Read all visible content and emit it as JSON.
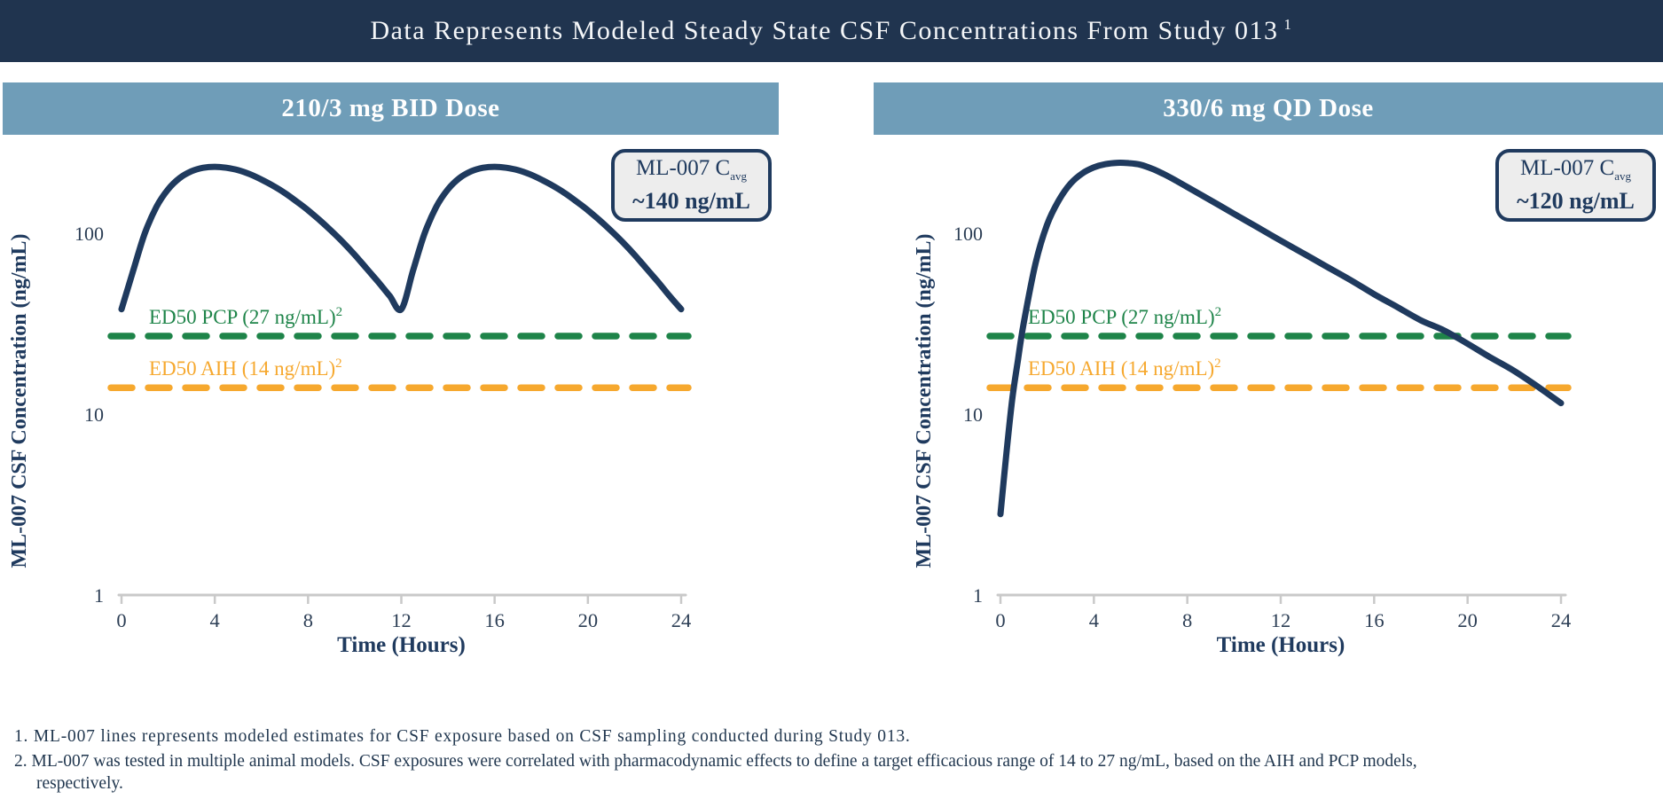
{
  "banner": {
    "title": "Data Represents Modeled Steady State CSF Concentrations From Study 013",
    "superscript": "1"
  },
  "colors": {
    "banner_navy": "#20344f",
    "panel_header_blue": "#6f9db8",
    "curve_navy": "#1f3a5e",
    "green": "#1e8449",
    "orange": "#f6a82e",
    "axis_gray": "#c9c9c9",
    "tick_text": "#2c3e55",
    "legend_bg": "#ededed"
  },
  "footnotes": [
    "1. ML-007 lines represents modeled estimates for CSF exposure based on CSF sampling conducted during Study 013.",
    "2. ML-007 was tested in multiple animal models. CSF exposures were correlated with pharmacodynamic effects to define a target efficacious range of 14 to 27 ng/mL, based on the AIH and PCP models, respectively."
  ],
  "chart_data": [
    {
      "type": "line",
      "panel_title": "210/3 mg BID Dose",
      "xlabel": "Time (Hours)",
      "ylabel": "ML-007 CSF Concentration (ng/mL)",
      "x_ticks": [
        0,
        4,
        8,
        12,
        16,
        20,
        24
      ],
      "y_ticks": [
        1,
        10,
        100
      ],
      "xlim": [
        0,
        24
      ],
      "ylim": [
        1,
        350
      ],
      "y_scale": "log",
      "grid": false,
      "annotation_box": {
        "label": "ML-007 C",
        "sub": "avg",
        "value": "~140 ng/mL"
      },
      "reference_lines": [
        {
          "label": "ED50 PCP (27 ng/mL)",
          "label_sup": "2",
          "value": 27,
          "color_key": "green"
        },
        {
          "label": "ED50 AIH (14 ng/mL)",
          "label_sup": "2",
          "value": 14,
          "color_key": "orange"
        }
      ],
      "series": [
        {
          "name": "ML-007 modeled CSF concentration (210/3 mg BID)",
          "points": [
            [
              0,
              38
            ],
            [
              0.5,
              62
            ],
            [
              1,
              100
            ],
            [
              1.5,
              140
            ],
            [
              2,
              175
            ],
            [
              2.5,
              202
            ],
            [
              3,
              220
            ],
            [
              3.5,
              230
            ],
            [
              4,
              233
            ],
            [
              4.5,
              230
            ],
            [
              5,
              223
            ],
            [
              5.5,
              212
            ],
            [
              6,
              198
            ],
            [
              6.5,
              183
            ],
            [
              7,
              167
            ],
            [
              7.5,
              150
            ],
            [
              8,
              134
            ],
            [
              8.5,
              118
            ],
            [
              9,
              103
            ],
            [
              9.5,
              89
            ],
            [
              10,
              76
            ],
            [
              10.5,
              64
            ],
            [
              11,
              54
            ],
            [
              11.5,
              45
            ],
            [
              12,
              38
            ],
            [
              12.5,
              62
            ],
            [
              13,
              100
            ],
            [
              13.5,
              140
            ],
            [
              14,
              175
            ],
            [
              14.5,
              202
            ],
            [
              15,
              220
            ],
            [
              15.5,
              230
            ],
            [
              16,
              233
            ],
            [
              16.5,
              230
            ],
            [
              17,
              223
            ],
            [
              17.5,
              212
            ],
            [
              18,
              198
            ],
            [
              18.5,
              183
            ],
            [
              19,
              167
            ],
            [
              19.5,
              150
            ],
            [
              20,
              134
            ],
            [
              20.5,
              118
            ],
            [
              21,
              103
            ],
            [
              21.5,
              89
            ],
            [
              22,
              76
            ],
            [
              22.5,
              64
            ],
            [
              23,
              54
            ],
            [
              23.5,
              45
            ],
            [
              24,
              38
            ]
          ]
        }
      ]
    },
    {
      "type": "line",
      "panel_title": "330/6 mg QD Dose",
      "xlabel": "Time (Hours)",
      "ylabel": "ML-007 CSF Concentration (ng/mL)",
      "x_ticks": [
        0,
        4,
        8,
        12,
        16,
        20,
        24
      ],
      "y_ticks": [
        1,
        10,
        100
      ],
      "xlim": [
        0,
        24
      ],
      "ylim": [
        1,
        350
      ],
      "y_scale": "log",
      "grid": false,
      "annotation_box": {
        "label": "ML-007 C",
        "sub": "avg",
        "value": "~120 ng/mL"
      },
      "reference_lines": [
        {
          "label": "ED50 PCP (27 ng/mL)",
          "label_sup": "2",
          "value": 27,
          "color_key": "green"
        },
        {
          "label": "ED50 AIH (14 ng/mL)",
          "label_sup": "2",
          "value": 14,
          "color_key": "orange"
        }
      ],
      "series": [
        {
          "name": "ML-007 modeled CSF concentration (330/6 mg QD)",
          "points": [
            [
              0,
              2.8
            ],
            [
              0.25,
              6
            ],
            [
              0.5,
              12
            ],
            [
              0.75,
              20
            ],
            [
              1,
              32
            ],
            [
              1.5,
              68
            ],
            [
              2,
              112
            ],
            [
              2.5,
              152
            ],
            [
              3,
              188
            ],
            [
              3.5,
              214
            ],
            [
              4,
              231
            ],
            [
              4.5,
              241
            ],
            [
              5,
              245
            ],
            [
              5.5,
              244
            ],
            [
              6,
              239
            ],
            [
              6.5,
              227
            ],
            [
              7,
              212
            ],
            [
              7.5,
              196
            ],
            [
              8,
              180
            ],
            [
              9,
              152
            ],
            [
              10,
              128
            ],
            [
              11,
              108
            ],
            [
              12,
              91
            ],
            [
              13,
              77
            ],
            [
              14,
              65
            ],
            [
              15,
              55
            ],
            [
              16,
              46
            ],
            [
              17,
              39
            ],
            [
              18,
              33
            ],
            [
              19,
              29
            ],
            [
              20,
              24.5
            ],
            [
              21,
              20.5
            ],
            [
              22,
              17.3
            ],
            [
              23,
              14.2
            ],
            [
              24,
              11.5
            ]
          ]
        }
      ]
    }
  ]
}
